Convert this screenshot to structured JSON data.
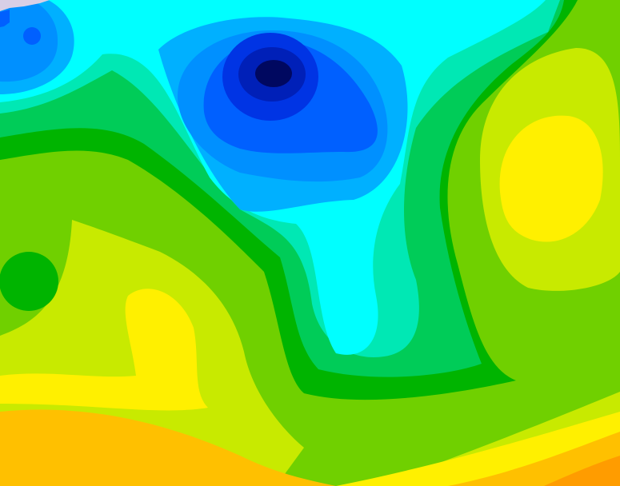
{
  "chart_data": {
    "type": "heatmap",
    "title": "",
    "xlabel": "",
    "ylabel": "",
    "grid": false,
    "legend": "none",
    "style": "filled-contour",
    "colors": {
      "lavender": "#d8cfe6",
      "navy": "#000860",
      "deep_blue": "#0020b8",
      "royal_blue": "#0034e4",
      "blue": "#0060ff",
      "azure": "#0090ff",
      "sky": "#00b0ff",
      "cyan": "#00ffff",
      "aquamarine": "#00e8b4",
      "medium_green": "#00cc58",
      "dark_green": "#00b400",
      "lime": "#70d000",
      "yellow_green": "#c8ea00",
      "yellow": "#fff000",
      "amber": "#ffc000",
      "orange": "#ff9c00"
    }
  }
}
